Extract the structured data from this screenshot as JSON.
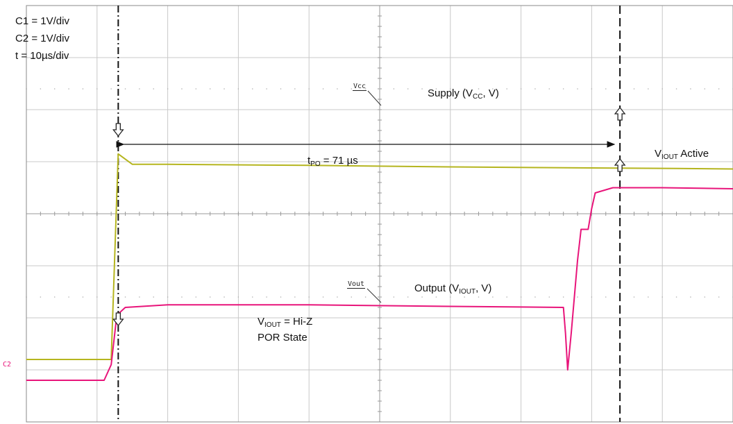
{
  "settings": {
    "c1": "C1 = 1V/div",
    "c2": "C2 = 1V/div",
    "time": "t = 10µs/div"
  },
  "annotations": {
    "supply_label": "Supply (V",
    "supply_sub": "CC",
    "supply_tail": ", V)",
    "output_label": "Output (V",
    "output_sub": "IOUT",
    "output_tail": ", V)",
    "tpo_main": "t",
    "tpo_sub": "PO",
    "tpo_tail": " = 71 µs",
    "active_main": "V",
    "active_sub": "IOUT",
    "active_tail": " Active",
    "hiz_main": "V",
    "hiz_sub": "IOUT",
    "hiz_tail": " = Hi-Z",
    "por": "POR State",
    "vcc_tag": "Vcc",
    "vout_tag": "Vout",
    "c2_marker": "C2"
  },
  "colors": {
    "c1_trace": "#b5b51f",
    "c2_trace": "#e8147a",
    "grid": "#c8c8c8",
    "marker": "#111111"
  },
  "chart_data": {
    "type": "line",
    "title": "",
    "xlabel": "",
    "ylabel": "",
    "x_unit": "µs",
    "x_div": 10,
    "y_div_volts": 1,
    "divisions_x": 10,
    "divisions_y": 8,
    "grid": true,
    "series": [
      {
        "name": "Vcc",
        "channel": "C1",
        "color": "#b5b51f",
        "x": [
          0,
          12,
          13,
          15,
          20,
          40,
          60,
          80,
          92,
          100
        ],
        "y": [
          -0.2,
          -0.2,
          3.75,
          3.55,
          3.55,
          3.53,
          3.5,
          3.48,
          3.47,
          3.46
        ]
      },
      {
        "name": "Vout",
        "channel": "C2",
        "color": "#e8147a",
        "x": [
          0,
          11,
          12,
          12.8,
          14,
          20,
          40,
          60,
          76,
          76.3,
          76.6,
          77.1,
          78,
          78.5,
          79.5,
          80,
          80.5,
          83,
          90,
          100
        ],
        "y": [
          -0.3,
          -0.3,
          0,
          0.95,
          1.1,
          1.15,
          1.15,
          1.12,
          1.1,
          0.6,
          -0.1,
          0.6,
          2.0,
          2.6,
          2.6,
          3.0,
          3.3,
          3.4,
          3.4,
          3.38
        ]
      }
    ],
    "markers": [
      {
        "name": "power-on",
        "x": 13
      },
      {
        "name": "output-active",
        "x": 84
      }
    ],
    "tpo_us": 71
  }
}
